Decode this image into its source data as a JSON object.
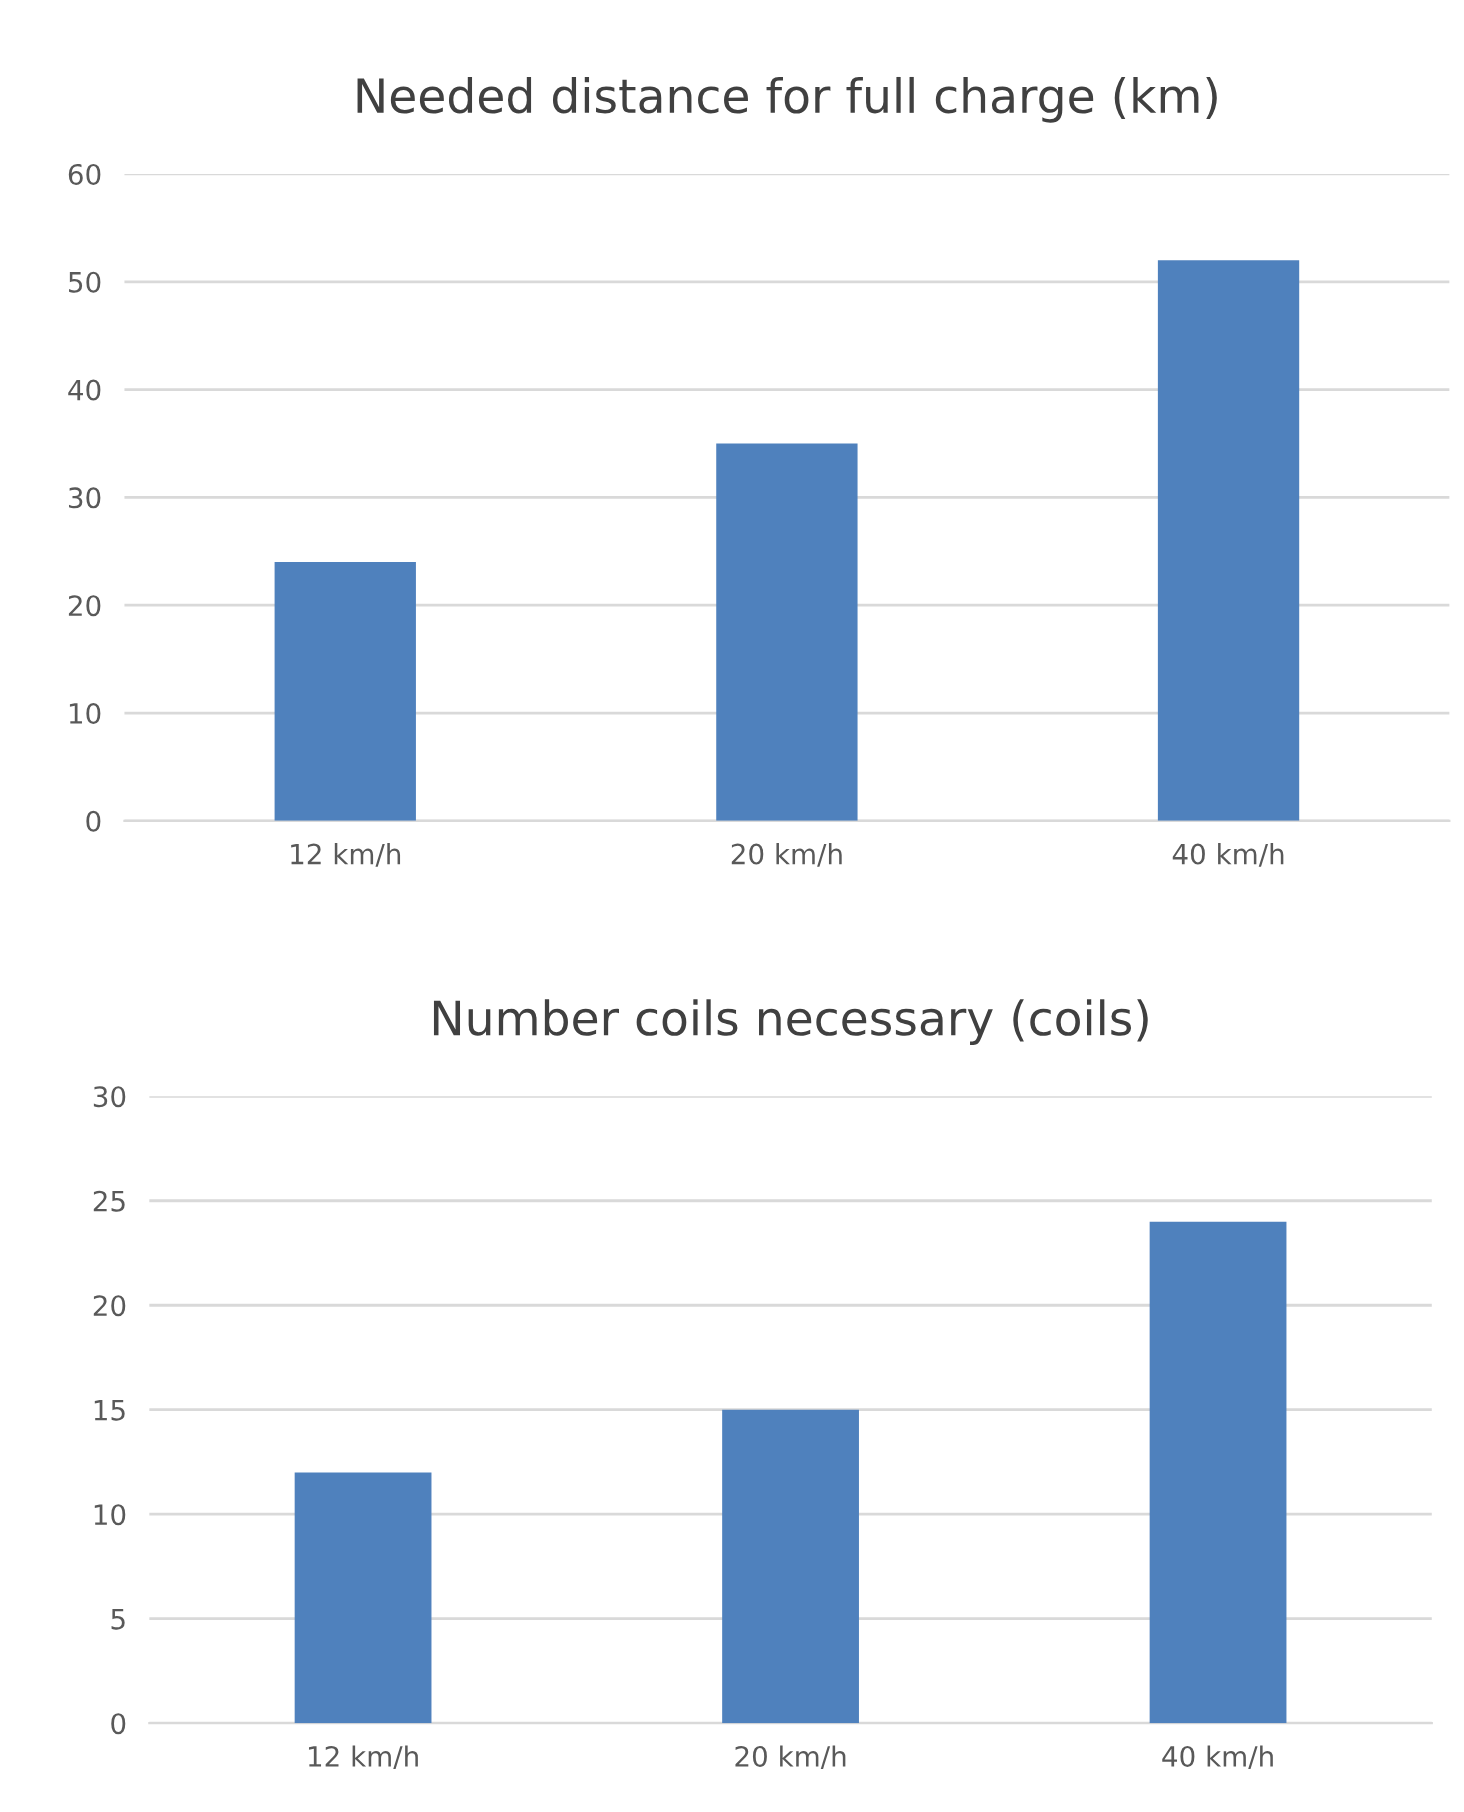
{
  "chart_data": [
    {
      "type": "bar",
      "title": "Needed distance for full charge (km)",
      "categories": [
        "12 km/h",
        "20 km/h",
        "40 km/h"
      ],
      "values": [
        24,
        35,
        52
      ],
      "color": "#4f81bd",
      "ylim": [
        0,
        60
      ],
      "yticks": [
        0,
        10,
        20,
        30,
        40,
        50,
        60
      ],
      "grid": "y",
      "legend": false
    },
    {
      "type": "bar",
      "title": "Number coils necessary (coils)",
      "categories": [
        "12 km/h",
        "20 km/h",
        "40 km/h"
      ],
      "values": [
        12,
        15,
        24
      ],
      "color": "#4f81bd",
      "ylim": [
        0,
        30
      ],
      "yticks": [
        0,
        5,
        10,
        15,
        20,
        25,
        30
      ],
      "grid": "y",
      "legend": false
    }
  ]
}
